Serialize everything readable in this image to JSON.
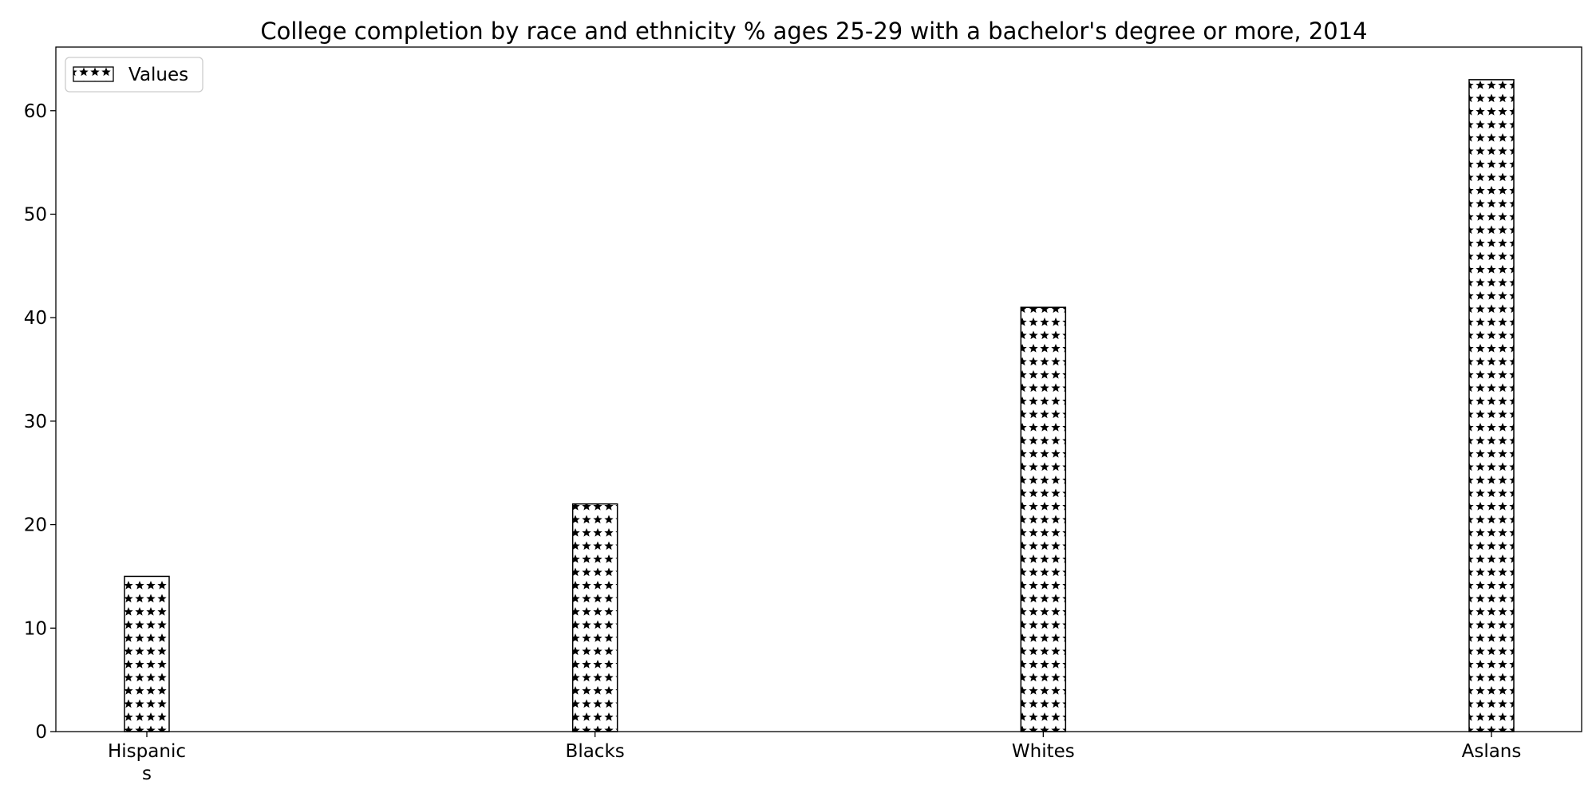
{
  "chart_data": {
    "type": "bar",
    "title": "College completion by race and ethnicity % ages 25-29 with a bachelor's degree or more, 2014",
    "xlabel": "",
    "ylabel": "",
    "categories": [
      "Hispanic\ns",
      "Blacks",
      "Whites",
      "Aslans"
    ],
    "series": [
      {
        "name": "Values",
        "values": [
          15,
          22,
          41,
          63
        ]
      }
    ],
    "ylim": [
      0,
      66.15
    ],
    "yticks": [
      0,
      10,
      20,
      30,
      40,
      50,
      60
    ],
    "grid": false,
    "legend_position": "top-left",
    "bar_fill": "#ffffff",
    "bar_hatch": "stars",
    "bar_edge_color": "#000000"
  }
}
